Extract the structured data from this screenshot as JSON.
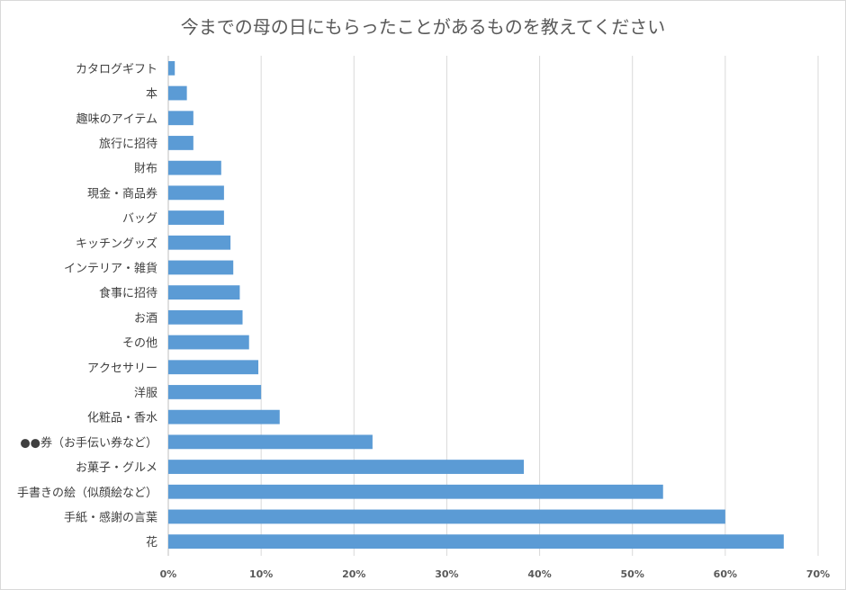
{
  "chart_data": {
    "type": "bar",
    "orientation": "horizontal",
    "title": "今までの母の日にもらったことがあるものを教えてください",
    "xlabel": "",
    "ylabel": "",
    "xlim": [
      0,
      70
    ],
    "x_ticks": [
      "0%",
      "10%",
      "20%",
      "30%",
      "40%",
      "50%",
      "60%",
      "70%"
    ],
    "grid": "vertical",
    "bar_color": "#5b9bd5",
    "categories": [
      "カタログギフト",
      "本",
      "趣味のアイテム",
      "旅行に招待",
      "財布",
      "現金・商品券",
      "バッグ",
      "キッチングッズ",
      "インテリア・雑貨",
      "食事に招待",
      "お酒",
      "その他",
      "アクセサリー",
      "洋服",
      "化粧品・香水",
      "●●券（お手伝い券など）",
      "お菓子・グルメ",
      "手書きの絵（似顔絵など）",
      "手紙・感謝の言葉",
      "花"
    ],
    "values": [
      0.7,
      2.0,
      2.7,
      2.7,
      5.7,
      6.0,
      6.0,
      6.7,
      7.0,
      7.7,
      8.0,
      8.7,
      9.7,
      10.0,
      12.0,
      22.0,
      38.3,
      53.3,
      60.0,
      66.3
    ]
  }
}
